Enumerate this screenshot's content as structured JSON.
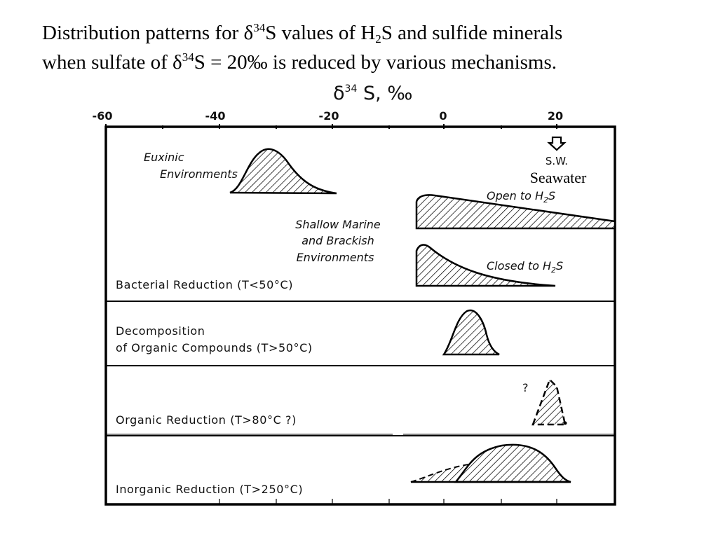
{
  "title": {
    "line1_pre": "Distribution patterns for δ",
    "line1_sup": "34",
    "line1_mid": "S values of H",
    "line1_sub": "2",
    "line1_post": "S and sulfide minerals",
    "line2_pre": "when sulfate of δ",
    "line2_sup": "34",
    "line2_post": "S = 20‰ is reduced by various mechanisms."
  },
  "axis": {
    "label_main": "δ",
    "label_sup": "34",
    "label_rest": " S, ‰",
    "ticks": [
      "-60",
      "-40",
      "-20",
      "0",
      "20"
    ]
  },
  "markers": {
    "seawater_abbrev": "S.W.",
    "seawater_label": "Seawater",
    "seawater_value": 20
  },
  "panels": {
    "bacterial": {
      "label": "Bacterial Reduction (T<50°C)",
      "euxinic_1": "Euxinic",
      "euxinic_2": "Environments",
      "shallow_1": "Shallow Marine",
      "shallow_2": "and Brackish",
      "shallow_3": "Environments",
      "open_pre": "Open to H",
      "open_sub": "2",
      "open_post": "S",
      "closed_pre": "Closed to H",
      "closed_sub": "2",
      "closed_post": "S"
    },
    "decomposition": {
      "label_1": "Decomposition",
      "label_2": "of Organic Compounds (T>50°C)"
    },
    "organic": {
      "label": "Organic Reduction (T>80°C ?)",
      "question": "?"
    },
    "inorganic": {
      "label": "Inorganic Reduction (T>250°C)"
    }
  }
}
